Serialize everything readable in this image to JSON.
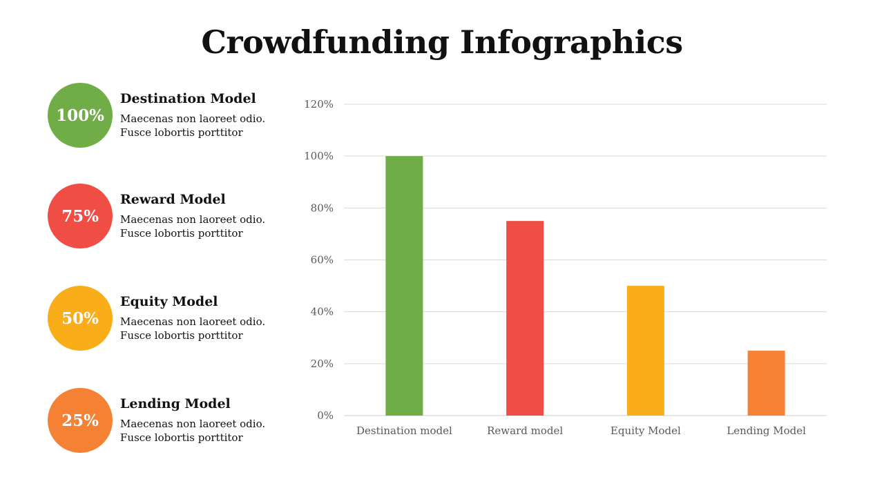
{
  "title": "Crowdfunding Infographics",
  "items": [
    {
      "percent": "100%",
      "title": "Destination Model",
      "desc_line1": "Maecenas non laoreet odio.",
      "desc_line2": "Fusce lobortis porttitor",
      "color": "#70AD47"
    },
    {
      "percent": "75%",
      "title": "Reward Model",
      "desc_line1": "Maecenas non laoreet odio.",
      "desc_line2": "Fusce lobortis porttitor",
      "color": "#F04E45"
    },
    {
      "percent": "50%",
      "title": "Equity Model",
      "desc_line1": "Maecenas non laoreet odio.",
      "desc_line2": "Fusce lobortis porttitor",
      "color": "#F9AD18"
    },
    {
      "percent": "25%",
      "title": "Lending Model",
      "desc_line1": "Maecenas non laoreet odio.",
      "desc_line2": "Fusce lobortis porttitor",
      "color": "#F58234"
    }
  ],
  "chart_data": {
    "type": "bar",
    "categories": [
      "Destination model",
      "Reward model",
      "Equity Model",
      "Lending Model"
    ],
    "values": [
      100,
      75,
      50,
      25
    ],
    "colors": [
      "#70AD47",
      "#F04E45",
      "#F9AD18",
      "#F58234"
    ],
    "ylim": [
      0,
      120
    ],
    "yticks": [
      0,
      20,
      40,
      60,
      80,
      100,
      120
    ],
    "ytick_labels": [
      "0%",
      "20%",
      "40%",
      "60%",
      "80%",
      "100%",
      "120%"
    ],
    "grid": true,
    "legend": "none"
  }
}
